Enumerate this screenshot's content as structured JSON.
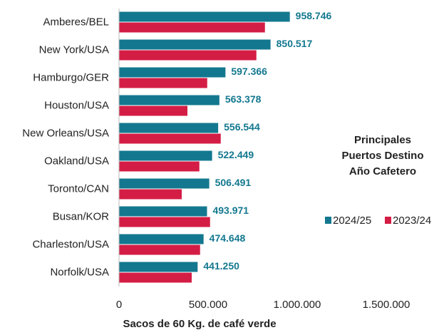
{
  "chart_data": {
    "type": "bar",
    "orientation": "horizontal",
    "categories": [
      "Amberes/BEL",
      "New York/USA",
      "Hamburgo/GER",
      "Houston/USA",
      "New Orleans/USA",
      "Oakland/USA",
      "Toronto/CAN",
      "Busan/KOR",
      "Charleston/USA",
      "Norfolk/USA"
    ],
    "series": [
      {
        "name": "2024/25",
        "color": "#13788f",
        "values": [
          958746,
          850517,
          597366,
          563378,
          556544,
          522449,
          506491,
          493971,
          474648,
          441250
        ],
        "value_labels": [
          "958.746",
          "850.517",
          "597.366",
          "563.378",
          "556.544",
          "522.449",
          "506.491",
          "493.971",
          "474.648",
          "441.250"
        ]
      },
      {
        "name": "2023/24",
        "color": "#d41d45",
        "values": [
          819000,
          771000,
          495000,
          384000,
          571000,
          451000,
          352000,
          511000,
          455000,
          408000
        ]
      }
    ],
    "xlim": [
      0,
      1500000
    ],
    "xticks": [
      0,
      {
        "value": 500000,
        "label": "500.000"
      },
      {
        "value": 1000000,
        "label": "1.000.000"
      },
      {
        "value": 1500000,
        "label": "1.500.000"
      }
    ],
    "xlabel": "Sacos de 60 Kg. de café verde",
    "legend_title": [
      "Principales",
      "Puertos Destino",
      "Año Cafetero"
    ],
    "legend": "right"
  }
}
